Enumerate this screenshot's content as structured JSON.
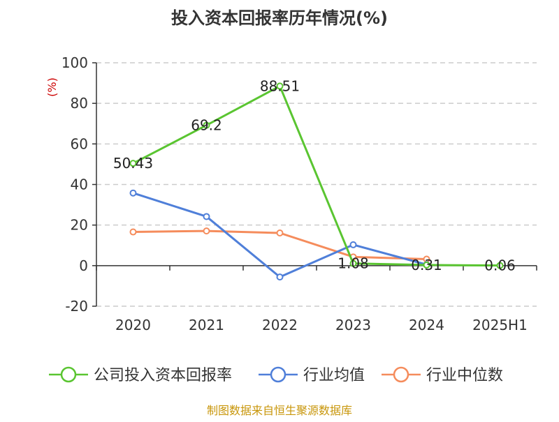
{
  "chart_data": {
    "type": "line",
    "title": "投入资本回报率历年情况(%)",
    "ylabel": "(%)",
    "xlabel": "",
    "categories": [
      "2020",
      "2021",
      "2022",
      "2023",
      "2024",
      "2025H1"
    ],
    "ylim": [
      -20,
      100
    ],
    "yticks": [
      100,
      80,
      60,
      40,
      20,
      0,
      -20
    ],
    "grid": true,
    "legend_position": "bottom",
    "series": [
      {
        "name": "公司投入资本回报率",
        "color": "#5ac531",
        "values": [
          50.43,
          69.2,
          88.51,
          1.08,
          0.31,
          0.06
        ],
        "labels": [
          "50.43",
          "69.2",
          "88.51",
          "1.08",
          "0.31",
          "0.06"
        ]
      },
      {
        "name": "行业均值",
        "color": "#4f7fd9",
        "values": [
          35.8,
          24.2,
          -5.6,
          10.3,
          0.5,
          null
        ]
      },
      {
        "name": "行业中位数",
        "color": "#f58c5c",
        "values": [
          16.6,
          17.1,
          16.1,
          4.3,
          3.2,
          null
        ]
      }
    ]
  },
  "footer": {
    "source": "制图数据来自恒生聚源数据库",
    "source_color": "#c8960a"
  },
  "colors": {
    "axis": "#333333",
    "grid": "#cccccc",
    "ylabel": "#cc0000"
  }
}
